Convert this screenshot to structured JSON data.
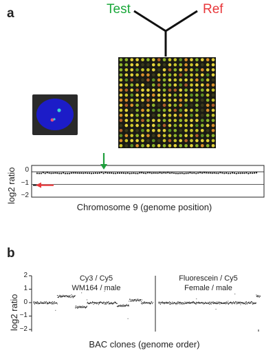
{
  "panel_a": {
    "label": "a",
    "test_label": "Test",
    "ref_label": "Ref",
    "test_color": "#1aa83a",
    "ref_color": "#e8373a",
    "microarray": {
      "rows": 18,
      "cols": 18,
      "background": "#1a1a14"
    },
    "nucleus": {
      "background": "#2a2a2a",
      "nucleus_color": "#1c1cc8",
      "spot_colors": [
        "#39d3d6",
        "#e8507a"
      ]
    },
    "chart": {
      "ylabel": "log2 ratio",
      "xlabel": "Chromosome 9 (genome position)",
      "yticks": [
        "0",
        "−1",
        "−2"
      ],
      "green_arrow_color": "#1f9e3c",
      "red_arrow_color": "#e8373a"
    }
  },
  "panel_b": {
    "label": "b",
    "ylabel": "log2 ratio",
    "xlabel": "BAC clones (genome order)",
    "yticks": [
      "2",
      "1",
      "0",
      "−1",
      "−2"
    ],
    "left_plot": {
      "line1": "Cy3 / Cy5",
      "line2": "WM164 / male"
    },
    "right_plot": {
      "line1": "Fluorescein / Cy5",
      "line2": "Female / male"
    }
  },
  "chart_data": [
    {
      "type": "scatter",
      "title": "",
      "xlabel": "Chromosome 9 (genome position)",
      "ylabel": "log2 ratio",
      "ylim": [
        -2,
        0.5
      ],
      "series": [
        {
          "baseline_value": -0.1,
          "deleted_region_value": -1.0
        }
      ],
      "grid": false
    },
    {
      "type": "scatter",
      "title": "",
      "xlabel": "BAC clones (genome order)",
      "ylabel": "log2 ratio",
      "ylim": [
        -2,
        2
      ],
      "segments": [
        {
          "fraction": [
            0,
            0.2
          ],
          "value": 0.0
        },
        {
          "fraction": [
            0.2,
            0.35
          ],
          "value": 0.5
        },
        {
          "fraction": [
            0.35,
            0.45
          ],
          "value": -0.3
        },
        {
          "fraction": [
            0.45,
            0.7
          ],
          "value": 0.0
        },
        {
          "fraction": [
            0.7,
            0.8
          ],
          "value": -0.2
        },
        {
          "fraction": [
            0.8,
            0.9
          ],
          "value": 0.2
        },
        {
          "fraction": [
            0.9,
            1.0
          ],
          "value": 0.0
        }
      ]
    },
    {
      "type": "scatter",
      "title": "",
      "segments": [
        {
          "fraction": [
            0,
            0.96
          ],
          "value": 0.0
        },
        {
          "fraction": [
            0.96,
            1.0
          ],
          "value": 0.5
        }
      ]
    }
  ]
}
